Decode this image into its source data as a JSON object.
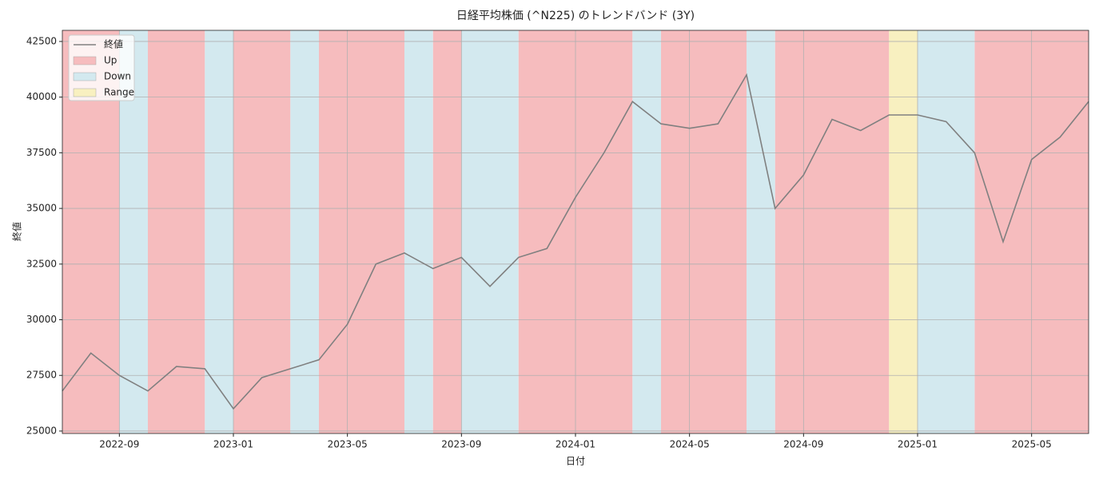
{
  "chart_data": {
    "type": "line",
    "title": "日経平均株価 (^N225) のトレンドバンド (3Y)",
    "x_label": "日付",
    "y_label": "終値",
    "x": [
      "2022-07",
      "2022-08",
      "2022-09",
      "2022-10",
      "2022-11",
      "2022-12",
      "2023-01",
      "2023-02",
      "2023-03",
      "2023-04",
      "2023-05",
      "2023-06",
      "2023-07",
      "2023-08",
      "2023-09",
      "2023-10",
      "2023-11",
      "2023-12",
      "2024-01",
      "2024-02",
      "2024-03",
      "2024-04",
      "2024-05",
      "2024-06",
      "2024-07",
      "2024-08",
      "2024-09",
      "2024-10",
      "2024-11",
      "2024-12",
      "2025-01",
      "2025-02",
      "2025-03",
      "2025-04",
      "2025-05",
      "2025-06",
      "2025-07"
    ],
    "series": [
      {
        "name": "終値",
        "color": "#808080",
        "values": [
          26800,
          28500,
          27500,
          26800,
          27900,
          27800,
          26000,
          27400,
          27800,
          28200,
          29800,
          32500,
          33000,
          32300,
          32800,
          31500,
          32800,
          33200,
          35500,
          37500,
          39800,
          38800,
          38600,
          38800,
          41000,
          35000,
          36500,
          39000,
          38500,
          39200,
          39200,
          38900,
          37500,
          33500,
          37200,
          38200,
          39800
        ]
      }
    ],
    "band_types": [
      {
        "name": "Up",
        "color": "#f6bcbe",
        "spans": [
          [
            "2022-07",
            "2022-09"
          ],
          [
            "2022-10",
            "2022-12"
          ],
          [
            "2023-01",
            "2023-03"
          ],
          [
            "2023-04",
            "2023-07"
          ],
          [
            "2023-08",
            "2023-09"
          ],
          [
            "2023-11",
            "2024-03"
          ],
          [
            "2024-04",
            "2024-07"
          ],
          [
            "2024-08",
            "2024-12"
          ],
          [
            "2025-03",
            "2025-07"
          ]
        ]
      },
      {
        "name": "Down",
        "color": "#d3e9ef",
        "spans": [
          [
            "2022-09",
            "2022-10"
          ],
          [
            "2022-12",
            "2023-01"
          ],
          [
            "2023-03",
            "2023-04"
          ],
          [
            "2023-07",
            "2023-08"
          ],
          [
            "2023-09",
            "2023-11"
          ],
          [
            "2024-03",
            "2024-04"
          ],
          [
            "2024-07",
            "2024-08"
          ],
          [
            "2025-01",
            "2025-03"
          ]
        ]
      },
      {
        "name": "Range",
        "color": "#f8f0c0",
        "spans": [
          [
            "2024-12",
            "2025-01"
          ]
        ]
      }
    ],
    "xlim": [
      "2022-07",
      "2025-07"
    ],
    "xticks": [
      "2022-09",
      "2023-01",
      "2023-05",
      "2023-09",
      "2024-01",
      "2024-05",
      "2024-09",
      "2025-01",
      "2025-05"
    ],
    "ylim": [
      24890,
      43000
    ],
    "yticks": [
      25000,
      27500,
      30000,
      32500,
      35000,
      37500,
      40000,
      42500
    ],
    "grid": true,
    "legend": "upper-left"
  }
}
